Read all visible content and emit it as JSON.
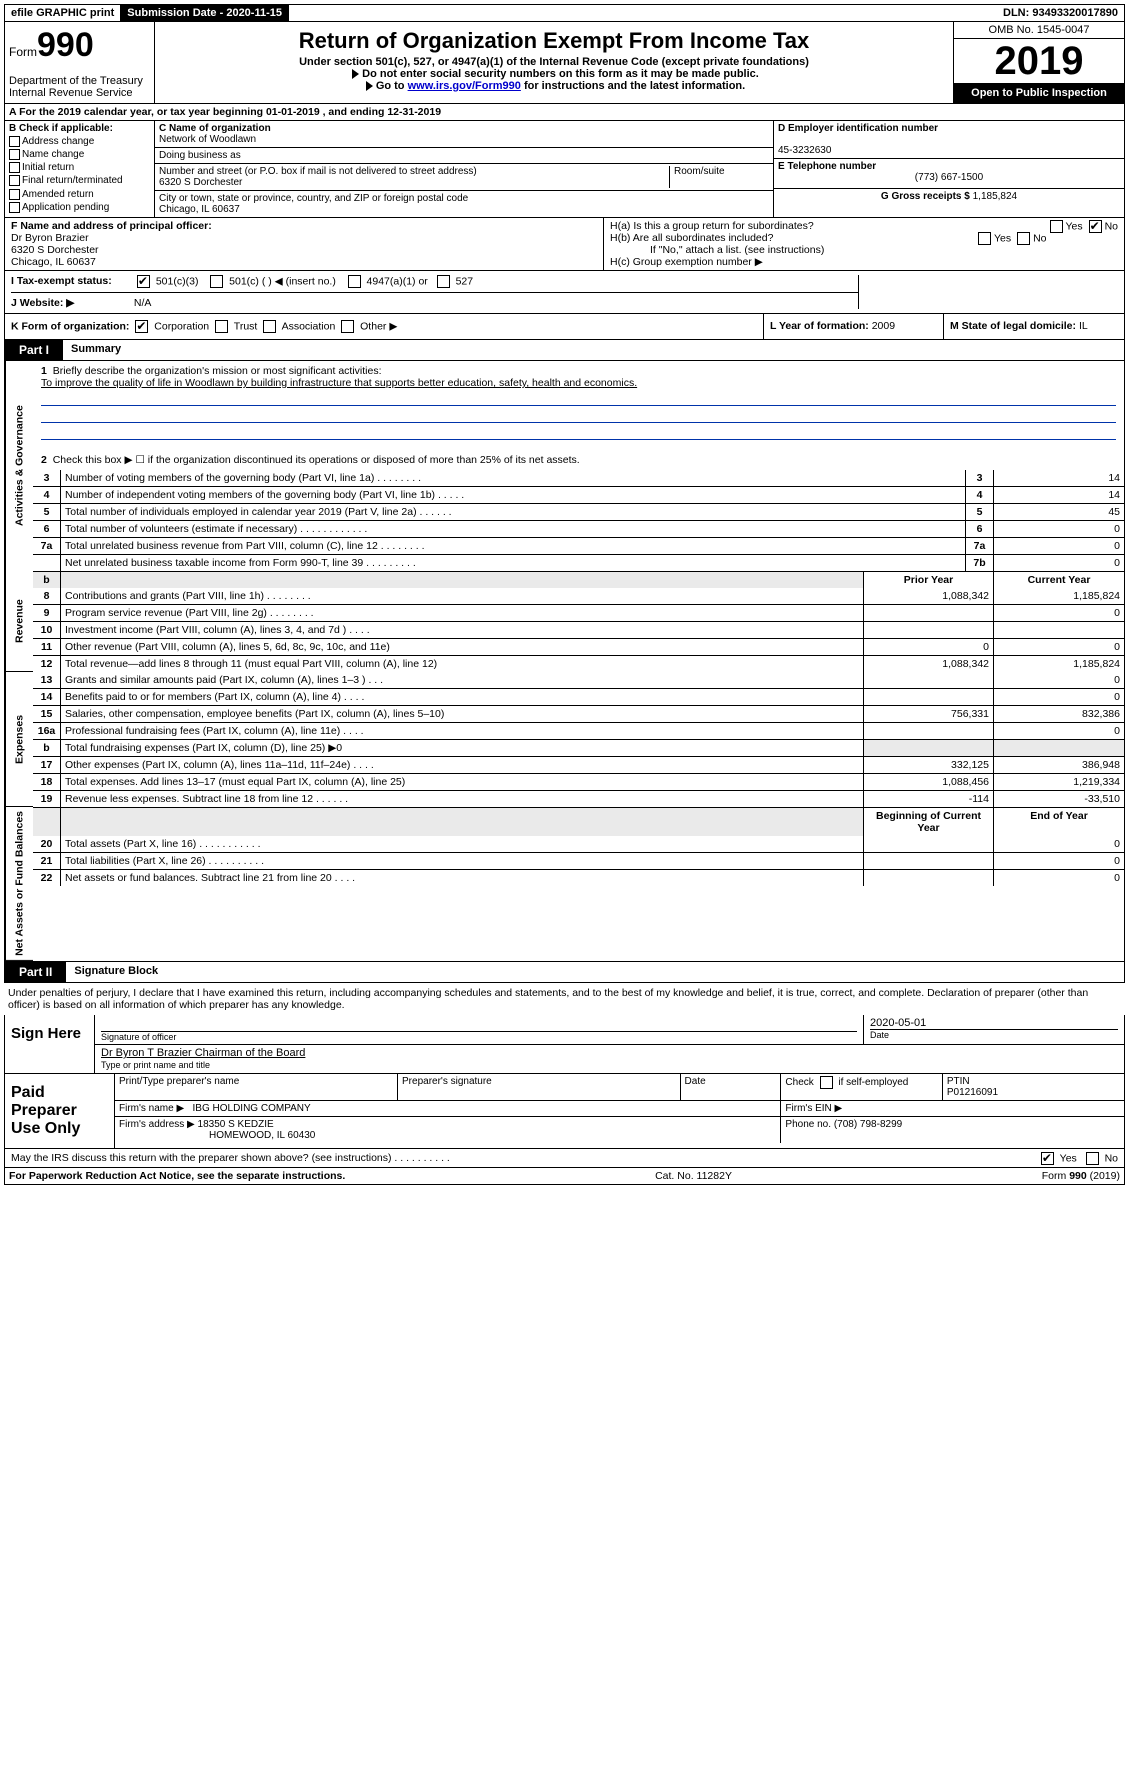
{
  "topbar": {
    "efile": "efile GRAPHIC print",
    "sub_label": "Submission Date",
    "sub_date": "2020-11-15",
    "dln": "DLN: 93493320017890"
  },
  "header": {
    "form_small": "Form",
    "form_big": "990",
    "dept": "Department of the Treasury\nInternal Revenue Service",
    "title": "Return of Organization Exempt From Income Tax",
    "sub1": "Under section 501(c), 527, or 4947(a)(1) of the Internal Revenue Code (except private foundations)",
    "sub2": "Do not enter social security numbers on this form as it may be made public.",
    "sub3_pre": "Go to ",
    "sub3_link": "www.irs.gov/Form990",
    "sub3_post": " for instructions and the latest information.",
    "omb": "OMB No. 1545-0047",
    "year": "2019",
    "open": "Open to Public Inspection"
  },
  "row_a": "A   For the 2019 calendar year, or tax year beginning 01-01-2019    , and ending 12-31-2019",
  "section_b": {
    "b_title": "B Check if applicable:",
    "checks": [
      "Address change",
      "Name change",
      "Initial return",
      "Final return/terminated",
      "Amended return",
      "Application pending"
    ],
    "c_name_lbl": "C Name of organization",
    "c_name": "Network of Woodlawn",
    "dba_lbl": "Doing business as",
    "dba": "",
    "addr_lbl": "Number and street (or P.O. box if mail is not delivered to street address)",
    "addr": "6320 S Dorchester",
    "room_lbl": "Room/suite",
    "city_lbl": "City or town, state or province, country, and ZIP or foreign postal code",
    "city": "Chicago, IL  60637",
    "d_lbl": "D Employer identification number",
    "d_val": "45-3232630",
    "e_lbl": "E Telephone number",
    "e_val": "(773) 667-1500",
    "g_lbl": "G Gross receipts $",
    "g_val": "1,185,824"
  },
  "officer": {
    "f_lbl": "F  Name and address of principal officer:",
    "name": "Dr Byron Brazier",
    "addr1": "6320 S Dorchester",
    "addr2": "Chicago, IL  60637"
  },
  "hbox": {
    "ha": "H(a)  Is this a group return for subordinates?",
    "hb": "H(b)  Are all subordinates included?",
    "hb_note": "If \"No,\" attach a list. (see instructions)",
    "hc": "H(c)  Group exemption number ▶",
    "yes": "Yes",
    "no": "No"
  },
  "row_i": {
    "lbl": "I   Tax-exempt status:",
    "o1": "501(c)(3)",
    "o2": "501(c) (   ) ◀ (insert no.)",
    "o3": "4947(a)(1) or",
    "o4": "527"
  },
  "row_j": {
    "lbl": "J   Website: ▶",
    "val": "N/A"
  },
  "row_k": {
    "k_lbl": "K Form of organization:",
    "corp": "Corporation",
    "trust": "Trust",
    "assoc": "Association",
    "other": "Other ▶",
    "l_lbl": "L Year of formation:",
    "l_val": "2009",
    "m_lbl": "M State of legal domicile:",
    "m_val": "IL"
  },
  "part1": {
    "tab": "Part I",
    "title": "Summary"
  },
  "summary": {
    "q1_lbl": "1",
    "q1": "Briefly describe the organization's mission or most significant activities:",
    "mission": "To improve the quality of life in Woodlawn by building infrastructure that supports better education, safety, health and economics.",
    "q2": "Check this box ▶ ☐ if the organization discontinued its operations or disposed of more than 25% of its net assets.",
    "rows_ag": [
      {
        "n": "3",
        "t": "Number of voting members of the governing body (Part VI, line 1a)   .    .    .    .    .    .    .    .",
        "k": "3",
        "v": "14"
      },
      {
        "n": "4",
        "t": "Number of independent voting members of the governing body (Part VI, line 1b)   .    .    .    .    .",
        "k": "4",
        "v": "14"
      },
      {
        "n": "5",
        "t": "Total number of individuals employed in calendar year 2019 (Part V, line 2a)   .    .    .    .    .    .",
        "k": "5",
        "v": "45"
      },
      {
        "n": "6",
        "t": "Total number of volunteers (estimate if necessary)   .    .    .    .    .    .    .    .    .    .    .    .",
        "k": "6",
        "v": "0"
      },
      {
        "n": "7a",
        "t": "Total unrelated business revenue from Part VIII, column (C), line 12   .    .    .    .    .    .    .    .",
        "k": "7a",
        "v": "0"
      },
      {
        "n": "",
        "t": "Net unrelated business taxable income from Form 990-T, line 39   .    .    .    .    .    .    .    .    .",
        "k": "7b",
        "v": "0"
      }
    ],
    "py_hdr_b": "b",
    "py": "Prior Year",
    "cy": "Current Year",
    "rows_rev": [
      {
        "n": "8",
        "t": "Contributions and grants (Part VIII, line 1h)   .    .    .    .    .    .    .    .",
        "p": "1,088,342",
        "c": "1,185,824"
      },
      {
        "n": "9",
        "t": "Program service revenue (Part VIII, line 2g)   .    .    .    .    .    .    .    .",
        "p": "",
        "c": "0"
      },
      {
        "n": "10",
        "t": "Investment income (Part VIII, column (A), lines 3, 4, and 7d )   .    .    .    .",
        "p": "",
        "c": ""
      },
      {
        "n": "11",
        "t": "Other revenue (Part VIII, column (A), lines 5, 6d, 8c, 9c, 10c, and 11e)",
        "p": "0",
        "c": "0"
      },
      {
        "n": "12",
        "t": "Total revenue—add lines 8 through 11 (must equal Part VIII, column (A), line 12)",
        "p": "1,088,342",
        "c": "1,185,824"
      }
    ],
    "rows_exp": [
      {
        "n": "13",
        "t": "Grants and similar amounts paid (Part IX, column (A), lines 1–3 )   .    .    .",
        "p": "",
        "c": "0"
      },
      {
        "n": "14",
        "t": "Benefits paid to or for members (Part IX, column (A), line 4)   .    .    .    .",
        "p": "",
        "c": "0"
      },
      {
        "n": "15",
        "t": "Salaries, other compensation, employee benefits (Part IX, column (A), lines 5–10)",
        "p": "756,331",
        "c": "832,386"
      },
      {
        "n": "16a",
        "t": "Professional fundraising fees (Part IX, column (A), line 11e)   .    .    .    .",
        "p": "",
        "c": "0"
      },
      {
        "n": "b",
        "t": "Total fundraising expenses (Part IX, column (D), line 25) ▶0",
        "p": "",
        "c": ""
      },
      {
        "n": "17",
        "t": "Other expenses (Part IX, column (A), lines 11a–11d, 11f–24e)   .    .    .    .",
        "p": "332,125",
        "c": "386,948"
      },
      {
        "n": "18",
        "t": "Total expenses. Add lines 13–17 (must equal Part IX, column (A), line 25)",
        "p": "1,088,456",
        "c": "1,219,334"
      },
      {
        "n": "19",
        "t": "Revenue less expenses. Subtract line 18 from line 12   .    .    .    .    .    .",
        "p": "-114",
        "c": "-33,510"
      }
    ],
    "na_hdr1": "Beginning of Current Year",
    "na_hdr2": "End of Year",
    "rows_na": [
      {
        "n": "20",
        "t": "Total assets (Part X, line 16)   .    .    .    .    .    .    .    .    .    .    .",
        "p": "",
        "c": "0"
      },
      {
        "n": "21",
        "t": "Total liabilities (Part X, line 26)   .    .    .    .    .    .    .    .    .    .",
        "p": "",
        "c": "0"
      },
      {
        "n": "22",
        "t": "Net assets or fund balances. Subtract line 21 from line 20   .    .    .    .",
        "p": "",
        "c": "0"
      }
    ],
    "vtabs": {
      "ag": "Activities & Governance",
      "rev": "Revenue",
      "exp": "Expenses",
      "na": "Net Assets or Fund Balances"
    }
  },
  "part2": {
    "tab": "Part II",
    "title": "Signature Block"
  },
  "perjury": "Under penalties of perjury, I declare that I have examined this return, including accompanying schedules and statements, and to the best of my knowledge and belief, it is true, correct, and complete. Declaration of preparer (other than officer) is based on all information of which preparer has any knowledge.",
  "sign": {
    "left": "Sign Here",
    "sig_lbl": "Signature of officer",
    "date": "2020-05-01",
    "date_lbl": "Date",
    "name": "Dr Byron T Brazier Chairman of the Board",
    "name_lbl": "Type or print name and title"
  },
  "prep": {
    "left": "Paid Preparer Use Only",
    "h1": "Print/Type preparer's name",
    "h2": "Preparer's signature",
    "h3": "Date",
    "h4_a": "Check",
    "h4_b": "if self-employed",
    "h5": "PTIN",
    "ptin": "P01216091",
    "firm_lbl": "Firm's name    ▶",
    "firm": "IBG HOLDING COMPANY",
    "ein_lbl": "Firm's EIN ▶",
    "addr_lbl": "Firm's address ▶",
    "addr1": "18350 S KEDZIE",
    "addr2": "HOMEWOOD, IL  60430",
    "phone_lbl": "Phone no.",
    "phone": "(708) 798-8299"
  },
  "discuss": {
    "q": "May the IRS discuss this return with the preparer shown above? (see instructions)    .    .    .    .    .    .    .    .    .    .",
    "yes": "Yes",
    "no": "No"
  },
  "footer": {
    "l": "For Paperwork Reduction Act Notice, see the separate instructions.",
    "m": "Cat. No. 11282Y",
    "r": "Form 990 (2019)"
  }
}
